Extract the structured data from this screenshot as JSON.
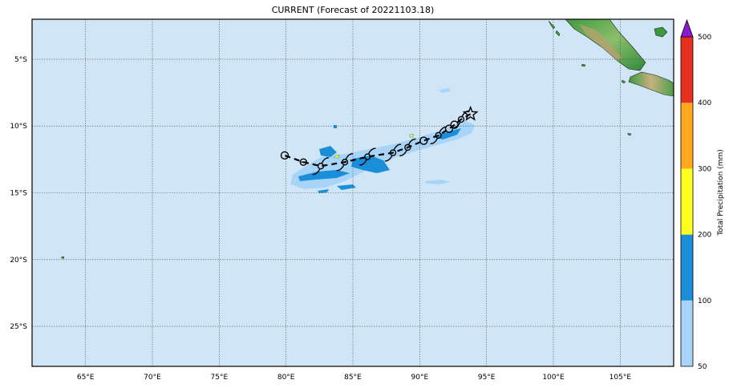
{
  "title": "CURRENT (Forecast of 20221103.18)",
  "map": {
    "lon_range": [
      61,
      109
    ],
    "lat_range": [
      -28,
      -2
    ],
    "ocean_color": "#d0e6f6",
    "gridlines": true,
    "lon_ticks": [
      {
        "value": 65,
        "label": "65°E"
      },
      {
        "value": 70,
        "label": "70°E"
      },
      {
        "value": 75,
        "label": "75°E"
      },
      {
        "value": 80,
        "label": "80°E"
      },
      {
        "value": 85,
        "label": "85°E"
      },
      {
        "value": 90,
        "label": "90°E"
      },
      {
        "value": 95,
        "label": "95°E"
      },
      {
        "value": 100,
        "label": "100°E"
      },
      {
        "value": 105,
        "label": "105°E"
      }
    ],
    "lat_ticks": [
      {
        "value": -5,
        "label": "5°S"
      },
      {
        "value": -10,
        "label": "10°S"
      },
      {
        "value": -15,
        "label": "15°S"
      },
      {
        "value": -20,
        "label": "20°S"
      },
      {
        "value": -25,
        "label": "25°S"
      }
    ]
  },
  "track": {
    "current_position": {
      "lon": 93.8,
      "lat": -9.1,
      "marker": "star-icon"
    },
    "points": [
      {
        "lon": 93.1,
        "lat": -9.5,
        "symbol": "storm"
      },
      {
        "lon": 92.6,
        "lat": -9.9,
        "symbol": "low"
      },
      {
        "lon": 92.2,
        "lat": -10.2,
        "symbol": "low"
      },
      {
        "lon": 91.4,
        "lat": -10.7,
        "symbol": "storm"
      },
      {
        "lon": 90.3,
        "lat": -11.1,
        "symbol": "low"
      },
      {
        "lon": 89.1,
        "lat": -11.6,
        "symbol": "storm"
      },
      {
        "lon": 88.0,
        "lat": -12.0,
        "symbol": "storm"
      },
      {
        "lon": 86.1,
        "lat": -12.3,
        "symbol": "storm"
      },
      {
        "lon": 84.4,
        "lat": -12.7,
        "symbol": "storm"
      },
      {
        "lon": 82.6,
        "lat": -13.0,
        "symbol": "storm"
      },
      {
        "lon": 81.3,
        "lat": -12.7,
        "symbol": "depression"
      },
      {
        "lon": 79.9,
        "lat": -12.2,
        "symbol": "low"
      }
    ]
  },
  "precipitation": {
    "label": "Total Precipitation (mm)",
    "levels": [
      {
        "min": 50,
        "max": 100,
        "color": "#a8d4f8"
      },
      {
        "min": 100,
        "max": 200,
        "color": "#1a8ed8"
      },
      {
        "min": 200,
        "max": 300,
        "color": "#ffff20"
      },
      {
        "min": 300,
        "max": 400,
        "color": "#ffa820"
      },
      {
        "min": 400,
        "max": 500,
        "color": "#e83020"
      }
    ],
    "over_color": "#8a1ad0",
    "tick_labels": [
      "50",
      "100",
      "200",
      "300",
      "400",
      "500"
    ]
  }
}
